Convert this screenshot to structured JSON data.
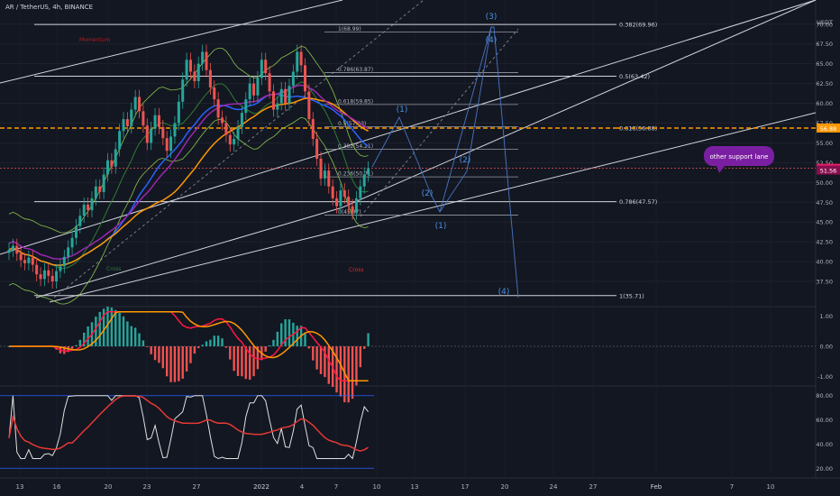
{
  "header": {
    "title": "AR / TetherUS, 4h, BINANCE"
  },
  "axis": {
    "currency": "USDT",
    "price_ticks": [
      "70.00",
      "67.50",
      "65.00",
      "62.50",
      "60.00",
      "57.50",
      "55.00",
      "52.50",
      "50.00",
      "47.50",
      "45.00",
      "42.50",
      "40.00",
      "37.50"
    ],
    "macd_ticks": [
      "1.00",
      "0.00",
      "-1.00"
    ],
    "rsi_ticks": [
      "80.00",
      "60.00",
      "40.00",
      "20.00"
    ],
    "x_labels": [
      "13",
      "16",
      "20",
      "23",
      "27",
      "2022",
      "4",
      "7",
      "10",
      "13",
      "17",
      "20",
      "24",
      "27",
      "Feb",
      "7",
      "10"
    ]
  },
  "price_badges": {
    "fib_level": "56.88",
    "last_price": "51.79",
    "ma_value": "51.56"
  },
  "fib_labels": {
    "l1": "1(68.99)",
    "l0786": "0.786(63.87)",
    "l0618": "0.618(59.85)",
    "l05": "0.5(57.03)",
    "l0382": "0.382(54.21)",
    "l0236": "0.236(50.71)",
    "l0": "0(45.87)"
  },
  "fib_right_labels": {
    "r0382": "0.382(69.96)",
    "r05": "0.5(63.42)",
    "r0618": "0.618(56.88)",
    "r0786": "0.786(47.57)",
    "r1": "1(35.71)"
  },
  "annotations": {
    "momentum": "Momentum",
    "cross1": "Cross",
    "cross2": "Cross",
    "callout": "other support lane",
    "wave_3": "(3)",
    "wave_4a": "(4)",
    "wave_1a": "(1)",
    "wave_2a": "(2)",
    "wave_2b": "(2)",
    "wave_1b": "(1)",
    "wave_4b": "(4)"
  },
  "colors": {
    "background": "#131722",
    "up": "#26a69a",
    "down": "#ef5350",
    "fib_orange": "#ff9800",
    "wave_blue": "#2962ff",
    "callout_bg": "#7b1fa2"
  },
  "chart_data": {
    "type": "candlestick",
    "symbol": "AR / TetherUS",
    "timeframe": "4h",
    "exchange": "BINANCE",
    "price_range": [
      35.0,
      71.0
    ],
    "close_series": [
      41.5,
      42.0,
      41.0,
      40.2,
      39.8,
      40.5,
      39.6,
      38.4,
      37.8,
      38.9,
      38.2,
      37.5,
      38.8,
      39.4,
      40.6,
      41.8,
      43.0,
      44.5,
      45.8,
      47.2,
      46.5,
      48.0,
      49.5,
      48.8,
      51.0,
      52.8,
      52.0,
      54.2,
      56.5,
      58.0,
      57.1,
      59.2,
      60.8,
      59.0,
      57.2,
      55.0,
      56.8,
      58.5,
      57.0,
      55.6,
      54.0,
      55.8,
      57.5,
      60.2,
      63.0,
      65.5,
      64.0,
      62.8,
      65.0,
      66.5,
      64.2,
      62.0,
      60.5,
      58.2,
      57.5,
      56.0,
      54.8,
      55.5,
      57.0,
      58.8,
      60.5,
      62.5,
      61.0,
      63.2,
      65.5,
      63.8,
      61.5,
      59.2,
      60.0,
      61.8,
      60.0,
      62.2,
      64.0,
      66.5,
      64.8,
      61.5,
      58.0,
      55.5,
      53.0,
      50.5,
      51.5,
      49.5,
      48.0,
      47.0,
      49.0,
      48.2,
      47.0,
      46.2,
      48.0,
      49.5,
      51.0,
      51.79
    ],
    "fibonacci_retracement": [
      {
        "level": "1",
        "price": 68.99
      },
      {
        "level": "0.786",
        "price": 63.87
      },
      {
        "level": "0.618",
        "price": 59.85
      },
      {
        "level": "0.5",
        "price": 57.03
      },
      {
        "level": "0.382",
        "price": 54.21
      },
      {
        "level": "0.236",
        "price": 50.71
      },
      {
        "level": "0",
        "price": 45.87
      }
    ],
    "fibonacci_extension": [
      {
        "level": "0.382",
        "price": 69.96
      },
      {
        "level": "0.5",
        "price": 63.42
      },
      {
        "level": "0.618",
        "price": 56.88
      },
      {
        "level": "0.786",
        "price": 47.57
      },
      {
        "level": "1",
        "price": 35.71
      }
    ],
    "last_price": 51.79,
    "macd_range": [
      -1.2,
      1.2
    ],
    "rsi_range": [
      15,
      85
    ],
    "rsi_bands": [
      80,
      20
    ]
  }
}
